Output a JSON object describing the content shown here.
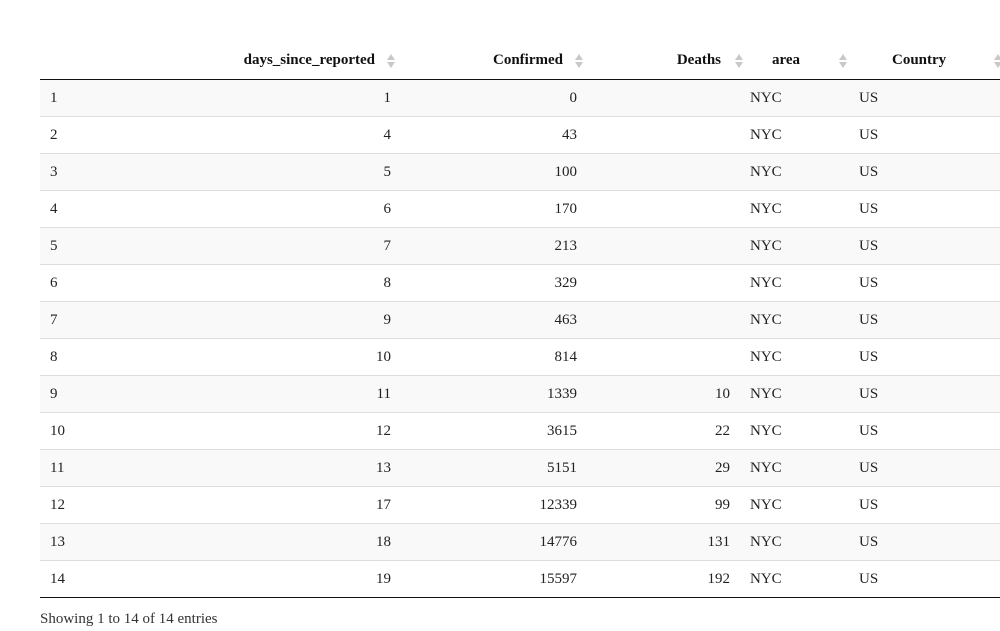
{
  "table": {
    "columns": [
      {
        "key": "index",
        "label": ""
      },
      {
        "key": "days_since_reported",
        "label": "days_since_reported"
      },
      {
        "key": "confirmed",
        "label": "Confirmed"
      },
      {
        "key": "deaths",
        "label": "Deaths"
      },
      {
        "key": "area",
        "label": "area"
      },
      {
        "key": "country",
        "label": "Country"
      }
    ],
    "rows": [
      [
        "1",
        "1",
        "0",
        "",
        "NYC",
        "US"
      ],
      [
        "2",
        "4",
        "43",
        "",
        "NYC",
        "US"
      ],
      [
        "3",
        "5",
        "100",
        "",
        "NYC",
        "US"
      ],
      [
        "4",
        "6",
        "170",
        "",
        "NYC",
        "US"
      ],
      [
        "5",
        "7",
        "213",
        "",
        "NYC",
        "US"
      ],
      [
        "6",
        "8",
        "329",
        "",
        "NYC",
        "US"
      ],
      [
        "7",
        "9",
        "463",
        "",
        "NYC",
        "US"
      ],
      [
        "8",
        "10",
        "814",
        "",
        "NYC",
        "US"
      ],
      [
        "9",
        "11",
        "1339",
        "10",
        "NYC",
        "US"
      ],
      [
        "10",
        "12",
        "3615",
        "22",
        "NYC",
        "US"
      ],
      [
        "11",
        "13",
        "5151",
        "29",
        "NYC",
        "US"
      ],
      [
        "12",
        "17",
        "12339",
        "99",
        "NYC",
        "US"
      ],
      [
        "13",
        "18",
        "14776",
        "131",
        "NYC",
        "US"
      ],
      [
        "14",
        "19",
        "15597",
        "192",
        "NYC",
        "US"
      ]
    ]
  },
  "info": {
    "text": "Showing 1 to 14 of 14 entries"
  },
  "icons": {
    "sort": "sort-both-icon"
  },
  "colors": {
    "header_border": "#111111",
    "row_stripe": "#f9f9f9",
    "row_border": "#dddddd",
    "sort_icon": "#c8c8c8"
  }
}
